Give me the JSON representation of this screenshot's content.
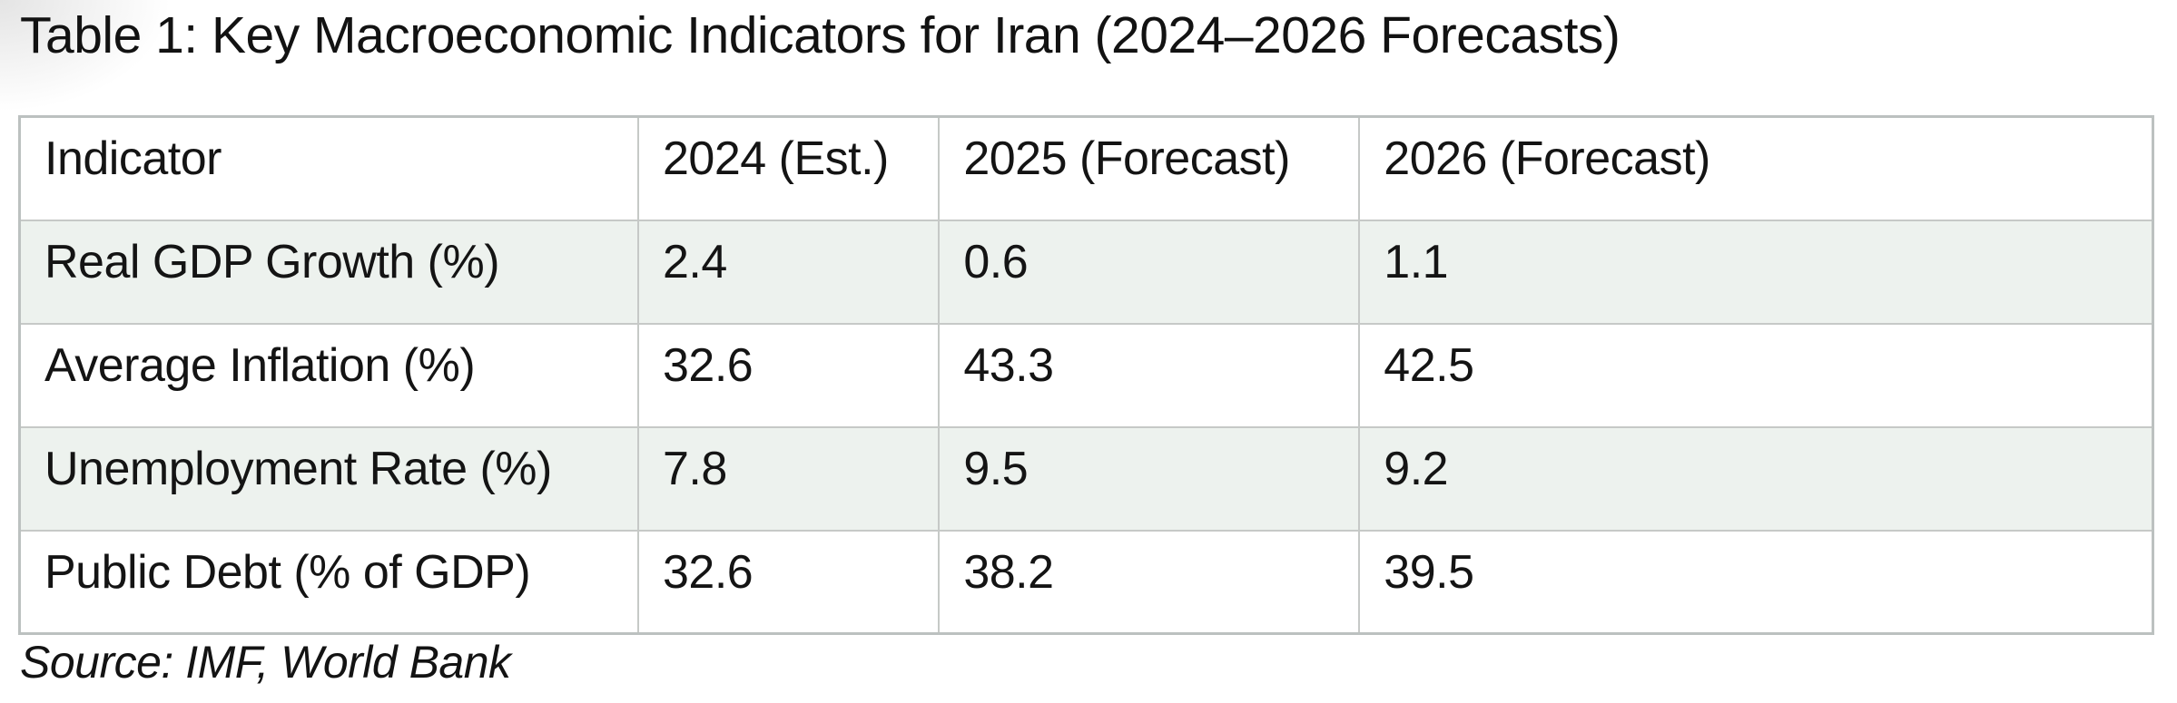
{
  "title": "Table 1: Key Macroeconomic Indicators for Iran (2024–2026 Forecasts)",
  "source": "Source: IMF, World Bank",
  "chart_data": {
    "type": "table",
    "title": "Table 1: Key Macroeconomic Indicators for Iran (2024–2026 Forecasts)",
    "columns": [
      "Indicator",
      "2024 (Est.)",
      "2025 (Forecast)",
      "2026 (Forecast)"
    ],
    "rows": [
      {
        "indicator": "Real GDP Growth (%)",
        "values": [
          "2.4",
          "0.6",
          "1.1"
        ],
        "shaded": true
      },
      {
        "indicator": "Average Inflation (%)",
        "values": [
          "32.6",
          "43.3",
          "42.5"
        ],
        "shaded": false
      },
      {
        "indicator": "Unemployment Rate (%)",
        "values": [
          "7.8",
          "9.5",
          "9.2"
        ],
        "shaded": true
      },
      {
        "indicator": "Public Debt (% of GDP)",
        "values": [
          "32.6",
          "38.2",
          "39.5"
        ],
        "shaded": false
      }
    ],
    "source_note": "Source: IMF, World Bank",
    "layout": {
      "column_width_pct": [
        29.0,
        14.1,
        19.7,
        37.2
      ],
      "grid": "all-borders",
      "striped_rows": "odd-data-rows"
    }
  },
  "colors": {
    "row_shade": "#edf2ee",
    "border_inner": "#c6c9c7",
    "border_outer": "#bcc1c0",
    "text": "#141414",
    "background": "#ffffff"
  }
}
